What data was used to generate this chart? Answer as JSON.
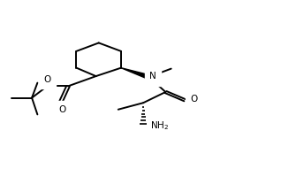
{
  "background": "#ffffff",
  "line_color": "#000000",
  "lw": 1.4,
  "figsize": [
    3.18,
    1.91
  ],
  "dpi": 100,
  "fs": 7.5,
  "NH2_label": "NH₂",
  "N_label": "N",
  "O_label": "O"
}
